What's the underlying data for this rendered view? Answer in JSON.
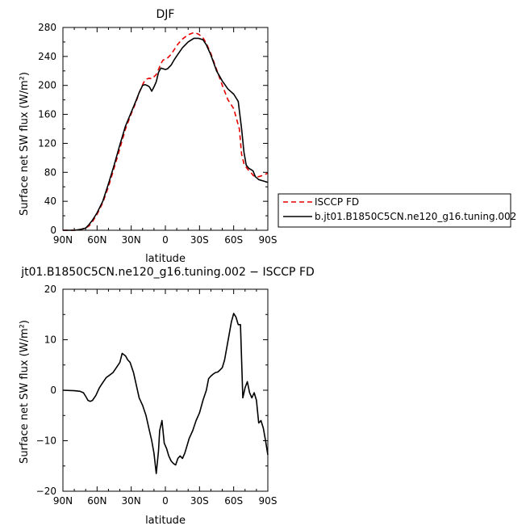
{
  "chart_data": [
    {
      "type": "line",
      "title": "DJF",
      "xlabel": "latitude",
      "ylabel": "Surface net SW flux (W/m²)",
      "xlim": [
        90,
        -90
      ],
      "ylim": [
        0,
        280
      ],
      "xtick_values": [
        90,
        60,
        30,
        0,
        -30,
        -60,
        -90
      ],
      "xtick_labels": [
        "90N",
        "60N",
        "30N",
        "0",
        "30S",
        "60S",
        "90S"
      ],
      "ytick_values": [
        0,
        40,
        80,
        120,
        160,
        200,
        240,
        280
      ],
      "ytick_labels": [
        "0",
        "40",
        "80",
        "120",
        "160",
        "200",
        "240",
        "280"
      ],
      "legend": "right",
      "series": [
        {
          "name": "ISCCP FD",
          "color": "#e60000",
          "dash": "dashed",
          "x": [
            90,
            85,
            80,
            75,
            70,
            67,
            64,
            60,
            55,
            50,
            45,
            40,
            35,
            30,
            26,
            23,
            20,
            18,
            16,
            14,
            12,
            10,
            8,
            6,
            4,
            2,
            0,
            -2,
            -5,
            -8,
            -11,
            -15,
            -20,
            -25,
            -29,
            -33,
            -36,
            -40,
            -45,
            -50,
            -55,
            -60,
            -65,
            -67,
            -69,
            -71,
            -73,
            -75,
            -77,
            -79,
            -82,
            -86,
            -90
          ],
          "y": [
            0,
            0,
            0,
            1,
            3,
            6,
            12,
            22,
            38,
            60,
            86,
            113,
            140,
            161,
            176,
            190,
            201,
            207,
            209,
            210,
            209,
            212,
            215,
            222,
            230,
            235,
            236,
            238,
            243,
            250,
            257,
            264,
            270,
            273,
            271,
            266,
            258,
            244,
            222,
            200,
            180,
            168,
            140,
            105,
            92,
            87,
            83,
            80,
            76,
            74,
            74,
            76,
            79
          ]
        },
        {
          "name": "b.jt01.B1850C5CN.ne120_g16.tuning.002",
          "color": "#000000",
          "dash": "solid",
          "x": [
            90,
            85,
            80,
            75,
            70,
            67,
            64,
            60,
            55,
            50,
            45,
            40,
            35,
            30,
            26,
            23,
            20,
            18,
            16,
            14,
            12,
            10,
            8,
            6,
            4,
            2,
            0,
            -2,
            -5,
            -8,
            -11,
            -15,
            -20,
            -25,
            -29,
            -33,
            -36,
            -40,
            -45,
            -50,
            -55,
            -60,
            -64,
            -67,
            -69,
            -71,
            -73,
            -75,
            -77,
            -79,
            -82,
            -86,
            -90
          ],
          "y": [
            0,
            0,
            0,
            1,
            3,
            8,
            14,
            24,
            40,
            64,
            90,
            118,
            144,
            163,
            178,
            190,
            200,
            201,
            200,
            198,
            192,
            198,
            205,
            218,
            224,
            223,
            222,
            223,
            228,
            236,
            243,
            252,
            260,
            265,
            265,
            263,
            256,
            242,
            220,
            206,
            195,
            188,
            178,
            140,
            108,
            90,
            86,
            84,
            82,
            74,
            70,
            68,
            66
          ]
        }
      ]
    },
    {
      "type": "line",
      "title": "jt01.B1850C5CN.ne120_g16.tuning.002 − ISCCP FD",
      "xlabel": "latitude",
      "ylabel": "Surface net SW flux (W/m²)",
      "xlim": [
        90,
        -90
      ],
      "ylim": [
        -20,
        20
      ],
      "xtick_values": [
        90,
        60,
        30,
        0,
        -30,
        -60,
        -90
      ],
      "xtick_labels": [
        "90N",
        "60N",
        "30N",
        "0",
        "30S",
        "60S",
        "90S"
      ],
      "ytick_values": [
        -20,
        -10,
        0,
        10,
        20
      ],
      "ytick_labels": [
        "−20",
        "−10",
        "0",
        "10",
        "20"
      ],
      "series": [
        {
          "color": "#000000",
          "dash": "solid",
          "x": [
            90,
            80,
            75,
            72,
            70,
            68,
            66,
            64,
            61,
            58,
            55,
            52,
            49,
            46,
            43,
            40,
            38,
            35,
            33,
            31,
            28,
            26,
            23,
            20,
            17,
            14,
            12,
            10,
            8,
            6,
            5,
            3,
            1,
            -1,
            -3,
            -5,
            -7,
            -9,
            -11,
            -13,
            -15,
            -17,
            -19,
            -21,
            -24,
            -27,
            -30,
            -33,
            -36,
            -38,
            -40,
            -42,
            -44,
            -46,
            -48,
            -50,
            -52,
            -54,
            -56,
            -58,
            -60,
            -62,
            -64,
            -66,
            -68,
            -70,
            -72,
            -74,
            -76,
            -78,
            -80,
            -82,
            -84,
            -86,
            -88,
            -90
          ],
          "y": [
            0,
            -0.1,
            -0.2,
            -0.5,
            -1.2,
            -2.0,
            -2.2,
            -2.0,
            -1.0,
            0.5,
            1.5,
            2.5,
            3.0,
            3.5,
            4.5,
            5.5,
            7.3,
            6.8,
            6.0,
            5.5,
            3.5,
            1.5,
            -1.5,
            -3.0,
            -5.0,
            -8.0,
            -10.0,
            -12.5,
            -16.5,
            -12.0,
            -8.0,
            -6.0,
            -10.5,
            -11.5,
            -13.0,
            -14.0,
            -14.5,
            -14.8,
            -13.5,
            -13.0,
            -13.5,
            -12.5,
            -11.0,
            -9.5,
            -8.0,
            -6.0,
            -4.5,
            -2.0,
            0.0,
            2.3,
            2.8,
            3.2,
            3.5,
            3.6,
            4.0,
            4.5,
            6.0,
            8.5,
            11.0,
            13.5,
            15.2,
            14.5,
            13.0,
            13.0,
            -1.5,
            0.5,
            1.7,
            -0.5,
            -1.5,
            -0.5,
            -2.0,
            -6.5,
            -6.0,
            -7.5,
            -10.0,
            -12.8
          ]
        }
      ]
    }
  ]
}
